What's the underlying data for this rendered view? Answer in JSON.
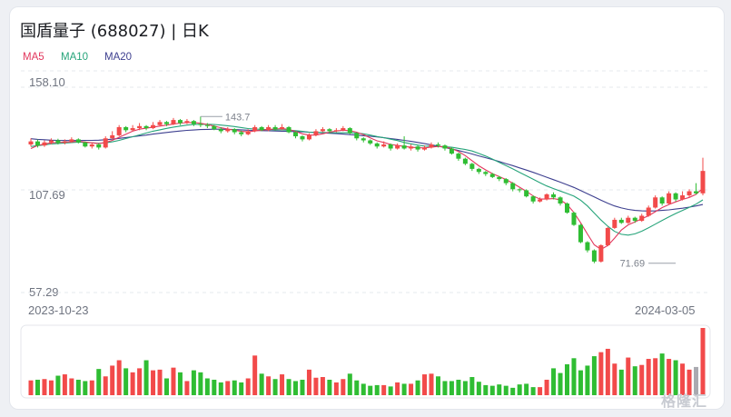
{
  "header": {
    "title": "国盾量子 (688027) | 日K"
  },
  "legend": [
    {
      "label": "MA5",
      "color": "#e2375d"
    },
    {
      "label": "MA10",
      "color": "#26a47a"
    },
    {
      "label": "MA20",
      "color": "#3d3f8f"
    }
  ],
  "colors": {
    "up": "#f24a4a",
    "down": "#2fbd33",
    "vol_neutral": "#a9a9b0"
  },
  "watermark": "格隆汇",
  "chart_data": {
    "type": "candlestick",
    "y_ticks": [
      "158.10",
      "107.69",
      "57.29"
    ],
    "ylim": [
      57.29,
      158.1
    ],
    "x_labels": {
      "start": "2023-10-23",
      "end": "2024-03-05"
    },
    "annotations": {
      "high": {
        "label": "143.7",
        "value": 143.7,
        "index": 25
      },
      "low": {
        "label": "71.69",
        "value": 71.69,
        "index": 95
      }
    },
    "candles": [
      [
        130.0,
        131.5,
        133.0,
        129.0
      ],
      [
        131.5,
        129.5,
        132.5,
        128.5
      ],
      [
        129.5,
        131.0,
        132.0,
        128.8
      ],
      [
        131.0,
        132.0,
        133.0,
        130.0
      ],
      [
        132.0,
        130.8,
        132.8,
        130.0
      ],
      [
        130.8,
        131.5,
        132.5,
        130.0
      ],
      [
        131.5,
        132.5,
        133.5,
        130.8
      ],
      [
        132.5,
        131.0,
        133.0,
        130.5
      ],
      [
        131.0,
        129.0,
        131.5,
        128.5
      ],
      [
        129.0,
        130.0,
        130.8,
        128.0
      ],
      [
        130.0,
        128.5,
        130.5,
        127.5
      ],
      [
        128.5,
        133.0,
        134.0,
        128.0
      ],
      [
        133.0,
        134.5,
        136.5,
        132.5
      ],
      [
        134.5,
        138.5,
        139.5,
        134.0
      ],
      [
        138.5,
        137.0,
        139.0,
        136.0
      ],
      [
        137.0,
        138.0,
        139.5,
        136.5
      ],
      [
        138.0,
        139.0,
        140.5,
        137.0
      ],
      [
        139.0,
        138.0,
        139.5,
        137.0
      ],
      [
        138.0,
        139.5,
        141.0,
        137.5
      ],
      [
        139.5,
        141.0,
        142.0,
        139.0
      ],
      [
        141.0,
        140.0,
        141.5,
        139.0
      ],
      [
        140.0,
        142.0,
        143.0,
        139.5
      ],
      [
        142.0,
        140.5,
        142.5,
        139.5
      ],
      [
        140.5,
        141.5,
        142.5,
        140.0
      ],
      [
        141.5,
        140.0,
        142.0,
        139.0
      ],
      [
        140.0,
        139.5,
        143.7,
        138.5
      ],
      [
        139.5,
        139.0,
        140.5,
        138.0
      ],
      [
        139.0,
        137.5,
        139.5,
        137.0
      ],
      [
        137.5,
        136.5,
        138.5,
        135.5
      ],
      [
        136.5,
        137.5,
        138.5,
        135.8
      ],
      [
        137.5,
        136.0,
        138.0,
        135.0
      ],
      [
        136.0,
        135.0,
        136.8,
        134.0
      ],
      [
        135.0,
        136.5,
        137.5,
        134.5
      ],
      [
        136.5,
        138.5,
        139.5,
        136.0
      ],
      [
        138.5,
        137.0,
        139.0,
        136.5
      ],
      [
        137.0,
        138.5,
        139.5,
        136.5
      ],
      [
        138.5,
        137.5,
        139.5,
        136.8
      ],
      [
        137.5,
        138.5,
        140.0,
        137.0
      ],
      [
        138.5,
        136.0,
        139.0,
        135.5
      ],
      [
        136.0,
        134.0,
        136.5,
        133.0
      ],
      [
        134.0,
        132.5,
        134.5,
        131.5
      ],
      [
        132.5,
        134.5,
        135.5,
        132.0
      ],
      [
        134.5,
        136.5,
        137.5,
        134.0
      ],
      [
        136.5,
        137.5,
        138.5,
        136.0
      ],
      [
        137.5,
        136.5,
        138.0,
        135.5
      ],
      [
        136.5,
        137.0,
        138.0,
        136.0
      ],
      [
        137.0,
        138.0,
        139.0,
        136.5
      ],
      [
        138.0,
        135.5,
        138.5,
        135.0
      ],
      [
        135.5,
        133.0,
        136.0,
        132.0
      ],
      [
        133.0,
        132.0,
        133.5,
        131.0
      ],
      [
        132.0,
        130.5,
        132.5,
        129.8
      ],
      [
        130.5,
        129.0,
        131.0,
        128.0
      ],
      [
        129.0,
        130.0,
        131.5,
        128.5
      ],
      [
        130.0,
        128.0,
        130.5,
        127.0
      ],
      [
        128.0,
        129.5,
        130.5,
        127.5
      ],
      [
        129.5,
        128.0,
        134.0,
        127.5
      ],
      [
        128.0,
        129.0,
        130.0,
        127.0
      ],
      [
        129.0,
        127.5,
        129.5,
        126.5
      ],
      [
        127.5,
        128.5,
        129.5,
        127.0
      ],
      [
        128.5,
        130.0,
        131.0,
        128.0
      ],
      [
        130.0,
        129.5,
        131.0,
        128.5
      ],
      [
        129.5,
        128.0,
        130.0,
        127.0
      ],
      [
        128.0,
        125.5,
        128.5,
        125.0
      ],
      [
        125.5,
        123.0,
        126.0,
        122.0
      ],
      [
        123.0,
        120.5,
        123.5,
        119.8
      ],
      [
        120.5,
        118.0,
        121.0,
        117.0
      ],
      [
        118.0,
        116.5,
        118.5,
        115.5
      ],
      [
        116.5,
        115.5,
        117.0,
        114.5
      ],
      [
        115.5,
        114.0,
        116.0,
        113.5
      ],
      [
        114.0,
        113.0,
        114.5,
        112.0
      ],
      [
        113.0,
        111.0,
        113.5,
        110.0
      ],
      [
        111.0,
        108.0,
        111.5,
        107.0
      ],
      [
        108.0,
        107.5,
        108.5,
        106.5
      ],
      [
        107.5,
        104.5,
        108.0,
        104.0
      ],
      [
        104.5,
        102.0,
        105.0,
        101.0
      ],
      [
        102.0,
        103.0,
        104.0,
        101.5
      ],
      [
        103.0,
        105.5,
        106.0,
        102.5
      ],
      [
        105.5,
        104.0,
        106.5,
        103.0
      ],
      [
        104.0,
        101.0,
        104.5,
        100.0
      ],
      [
        101.0,
        96.5,
        101.5,
        96.0
      ],
      [
        96.5,
        90.5,
        97.0,
        90.0
      ],
      [
        90.5,
        82.0,
        91.0,
        81.5
      ],
      [
        82.0,
        78.0,
        82.5,
        77.0
      ],
      [
        78.0,
        72.5,
        78.5,
        71.69
      ],
      [
        72.5,
        80.5,
        81.0,
        72.0
      ],
      [
        80.5,
        89.0,
        89.5,
        80.0
      ],
      [
        89.0,
        93.0,
        94.0,
        88.5
      ],
      [
        93.0,
        91.5,
        94.0,
        91.0
      ],
      [
        91.5,
        94.0,
        95.0,
        91.0
      ],
      [
        94.0,
        92.5,
        94.5,
        91.5
      ],
      [
        92.5,
        95.0,
        96.0,
        92.0
      ],
      [
        95.0,
        99.0,
        100.0,
        94.5
      ],
      [
        99.0,
        104.0,
        105.0,
        98.5
      ],
      [
        104.0,
        101.0,
        104.5,
        100.0
      ],
      [
        101.0,
        106.0,
        107.0,
        100.5
      ],
      [
        106.0,
        103.0,
        106.5,
        102.0
      ],
      [
        103.0,
        105.0,
        107.0,
        102.5
      ],
      [
        105.0,
        107.0,
        108.0,
        104.0
      ],
      [
        107.0,
        106.0,
        111.0,
        105.5
      ],
      [
        106.0,
        117.0,
        123.5,
        105.0
      ]
    ],
    "volume": [
      22,
      23,
      24,
      22,
      29,
      31,
      25,
      23,
      21,
      22,
      39,
      28,
      44,
      52,
      40,
      34,
      40,
      52,
      37,
      38,
      25,
      41,
      34,
      21,
      37,
      34,
      25,
      23,
      19,
      21,
      22,
      19,
      25,
      59,
      32,
      28,
      24,
      31,
      24,
      21,
      23,
      38,
      26,
      27,
      23,
      19,
      24,
      32,
      22,
      17,
      14,
      15,
      15,
      13,
      19,
      17,
      17,
      22,
      31,
      32,
      28,
      21,
      21,
      23,
      21,
      27,
      20,
      15,
      14,
      16,
      14,
      11,
      16,
      17,
      12,
      12,
      23,
      40,
      33,
      46,
      55,
      37,
      44,
      58,
      64,
      69,
      47,
      38,
      56,
      43,
      45,
      54,
      55,
      62,
      54,
      52,
      47,
      38,
      42,
      100
    ],
    "ma5": [
      128.0,
      129.5,
      130.2,
      130.8,
      131.0,
      131.1,
      131.3,
      131.5,
      131.2,
      130.8,
      130.4,
      131.0,
      132.0,
      133.5,
      135.0,
      136.5,
      137.5,
      138.0,
      138.5,
      139.0,
      139.5,
      140.0,
      140.5,
      140.7,
      140.8,
      140.4,
      139.8,
      139.0,
      138.2,
      137.6,
      137.0,
      136.4,
      136.2,
      136.6,
      137.0,
      137.4,
      137.6,
      137.8,
      137.4,
      136.4,
      135.2,
      134.6,
      134.6,
      135.2,
      136.0,
      136.6,
      137.0,
      136.8,
      136.0,
      134.8,
      133.2,
      131.8,
      131.0,
      130.0,
      129.5,
      129.0,
      128.6,
      128.4,
      128.3,
      128.7,
      129.0,
      128.8,
      128.0,
      126.5,
      124.5,
      122.0,
      119.5,
      117.5,
      115.7,
      114.2,
      112.8,
      111.0,
      109.0,
      107.0,
      104.7,
      103.2,
      103.2,
      103.4,
      102.8,
      100.5,
      96.6,
      91.5,
      86.0,
      80.7,
      78.5,
      80.4,
      84.0,
      88.0,
      90.5,
      92.0,
      93.5,
      95.0,
      97.0,
      99.0,
      100.5,
      101.8,
      103.0,
      104.0,
      105.5,
      108.5
    ],
    "ma10": [
      129.0,
      129.4,
      129.8,
      130.2,
      130.5,
      130.7,
      130.9,
      131.1,
      131.0,
      130.8,
      130.6,
      130.8,
      131.3,
      132.0,
      132.9,
      133.8,
      134.7,
      135.6,
      136.5,
      137.2,
      137.9,
      138.5,
      139.0,
      139.5,
      139.8,
      139.9,
      139.9,
      139.8,
      139.5,
      139.2,
      138.8,
      138.3,
      137.8,
      137.6,
      137.4,
      137.3,
      137.2,
      137.2,
      137.0,
      136.8,
      136.4,
      136.0,
      135.9,
      135.9,
      135.8,
      135.7,
      135.8,
      135.7,
      135.6,
      135.2,
      134.6,
      133.9,
      133.3,
      132.6,
      131.9,
      131.0,
      130.3,
      129.7,
      129.2,
      129.1,
      129.0,
      128.9,
      128.6,
      128.1,
      127.5,
      126.8,
      125.6,
      124.3,
      122.8,
      121.2,
      119.6,
      118.0,
      116.3,
      114.6,
      112.9,
      111.2,
      109.6,
      108.3,
      107.1,
      105.9,
      104.6,
      102.6,
      99.8,
      96.3,
      92.9,
      89.8,
      87.3,
      85.9,
      85.5,
      86.1,
      87.4,
      89.1,
      90.9,
      92.7,
      94.4,
      96.1,
      97.6,
      99.1,
      100.7,
      102.8
    ],
    "ma20": [
      132.8,
      132.5,
      132.3,
      132.1,
      132.0,
      131.9,
      131.9,
      131.9,
      132.0,
      132.0,
      132.1,
      132.3,
      132.6,
      133.0,
      133.4,
      133.8,
      134.2,
      134.6,
      135.1,
      135.5,
      135.9,
      136.3,
      136.6,
      136.9,
      137.1,
      137.3,
      137.4,
      137.5,
      137.5,
      137.4,
      137.3,
      137.2,
      137.0,
      136.9,
      136.8,
      136.7,
      136.6,
      136.5,
      136.4,
      136.3,
      136.2,
      136.0,
      135.9,
      135.7,
      135.5,
      135.3,
      135.1,
      134.8,
      134.6,
      134.3,
      134.0,
      133.7,
      133.3,
      132.9,
      132.5,
      132.0,
      131.5,
      131.0,
      130.4,
      129.8,
      129.2,
      128.5,
      127.8,
      127.0,
      126.2,
      125.3,
      124.4,
      123.5,
      122.6,
      121.6,
      120.6,
      119.6,
      118.5,
      117.4,
      116.3,
      115.1,
      113.9,
      112.7,
      111.5,
      110.2,
      108.9,
      107.4,
      105.8,
      104.2,
      102.6,
      101.1,
      99.8,
      98.8,
      98.1,
      97.6,
      97.4,
      97.3,
      97.4,
      97.6,
      97.9,
      98.3,
      98.7,
      99.2,
      99.8,
      100.5
    ]
  }
}
